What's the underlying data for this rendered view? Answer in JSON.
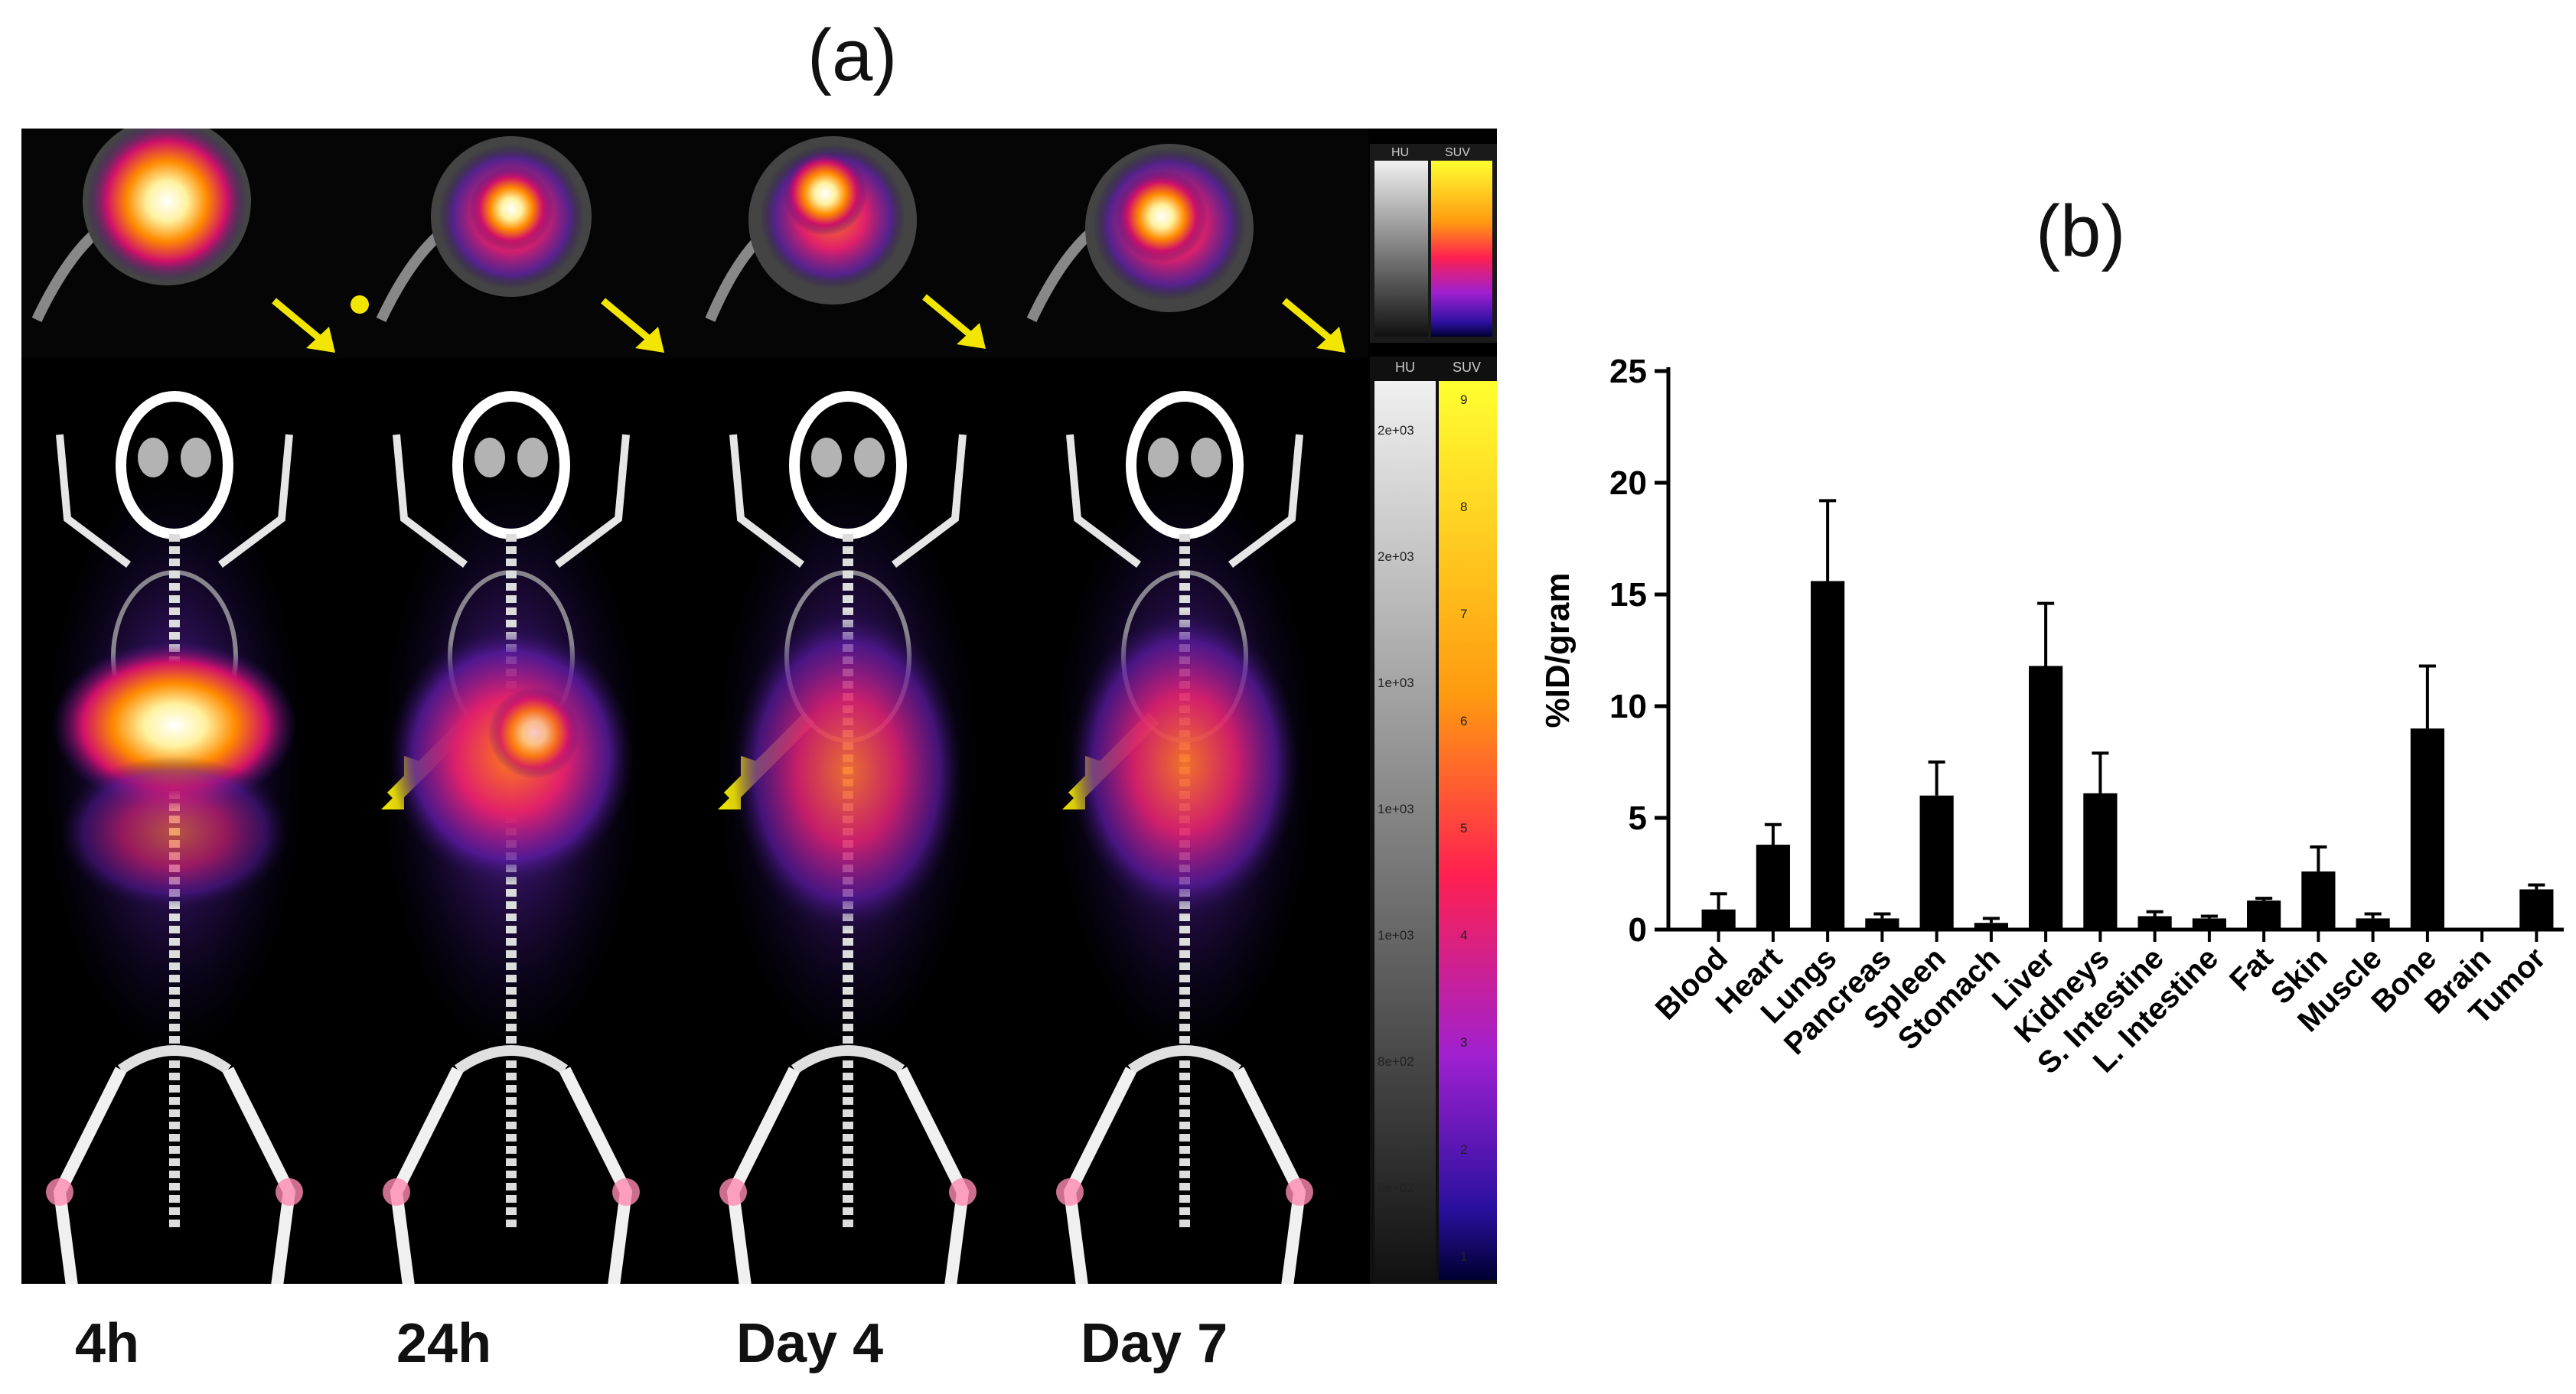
{
  "panel_a_label": "(a)",
  "panel_b_label": "(b)",
  "timepoints": [
    "4h",
    "24h",
    "Day 4",
    "Day 7"
  ],
  "colorbar": {
    "small_headers": [
      "HU",
      "SUV"
    ],
    "large_headers": [
      "HU",
      "SUV"
    ],
    "hu_ticks": [
      "2e+03",
      "2e+03",
      "1e+03",
      "1e+03",
      "1e+03",
      "8e+02",
      "6e+02"
    ],
    "suv_ticks": [
      "9",
      "8",
      "7",
      "6",
      "5",
      "4",
      "3",
      "2",
      "1"
    ]
  },
  "colors": {
    "bar": "#000000",
    "arrow": "#f2e600",
    "background": "#000000"
  },
  "chart_data": {
    "type": "bar",
    "title": "",
    "xlabel": "",
    "ylabel": "%ID/gram",
    "ylim": [
      0,
      25
    ],
    "yticks": [
      0,
      5,
      10,
      15,
      20,
      25
    ],
    "categories": [
      "Blood",
      "Heart",
      "Lungs",
      "Pancreas",
      "Spleen",
      "Stomach",
      "Liver",
      "Kidneys",
      "S. Intestine",
      "L. Intestine",
      "Fat",
      "Skin",
      "Muscle",
      "Bone",
      "Brain",
      "Tumor"
    ],
    "values": [
      0.9,
      3.8,
      15.6,
      0.5,
      6.0,
      0.3,
      11.8,
      6.1,
      0.6,
      0.5,
      1.3,
      2.6,
      0.5,
      9.0,
      0.0,
      1.8
    ],
    "errors": [
      0.7,
      0.9,
      3.6,
      0.2,
      1.5,
      0.2,
      2.8,
      1.8,
      0.2,
      0.1,
      0.1,
      1.1,
      0.2,
      2.8,
      0.0,
      0.2
    ]
  }
}
